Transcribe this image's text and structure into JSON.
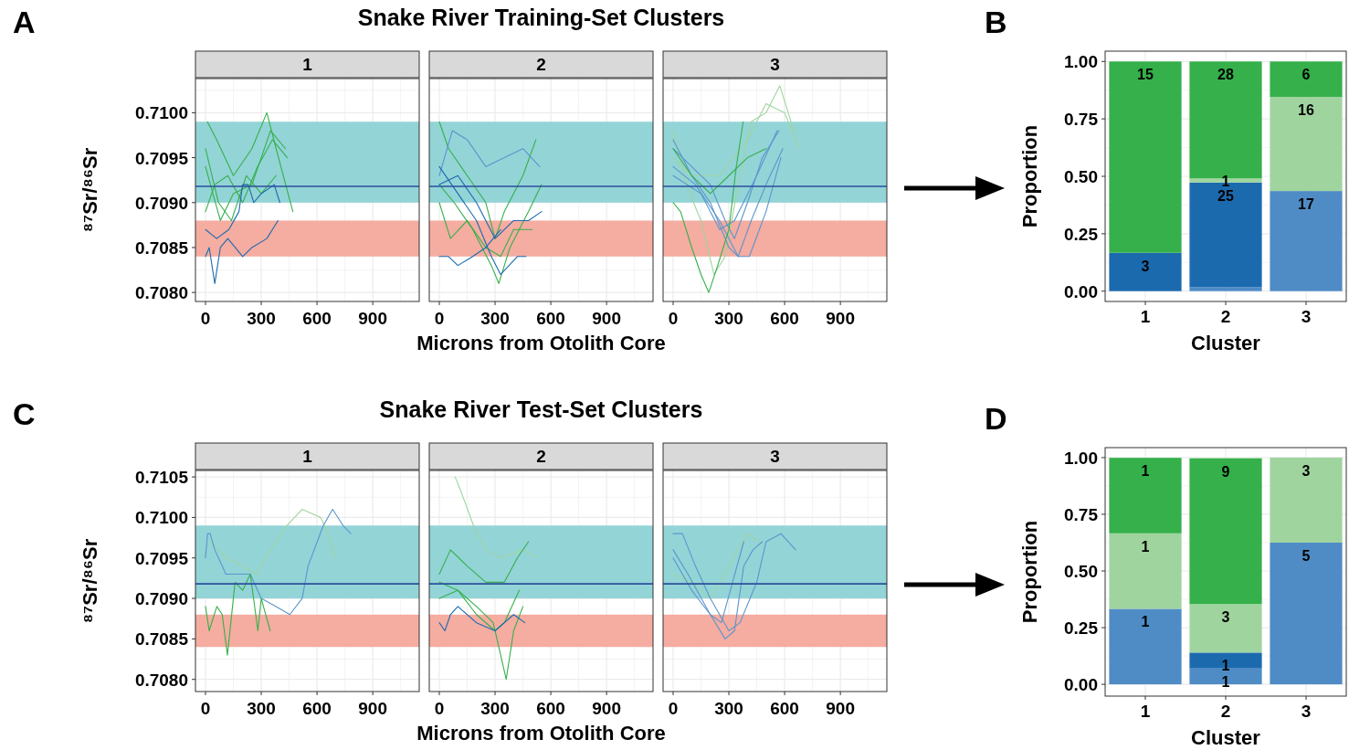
{
  "chart_data": [
    {
      "type": "line",
      "title": "1",
      "annotations": [
        "A"
      ],
      "ylabel": "⁸⁷Sr/⁸⁶Sr",
      "xlim": [
        -54,
        1150
      ],
      "ylim": [
        0.7079,
        0.71038
      ],
      "xticks": [
        0,
        300,
        600,
        900
      ],
      "yticks": [
        {
          "value": 0.708,
          "label": "0.7080"
        },
        {
          "value": 0.7085,
          "label": "0.7085"
        },
        {
          "value": 0.709,
          "label": "0.7090"
        },
        {
          "value": 0.7095,
          "label": "0.7095"
        },
        {
          "value": 0.71,
          "label": "0.7100"
        }
      ],
      "grid": true,
      "bands": [
        {
          "axis": "y",
          "from": 0.709,
          "to": 0.7099,
          "color": "#93d4d7"
        },
        {
          "axis": "y",
          "from": 0.7084,
          "to": 0.7088,
          "color": "#f5aca1"
        }
      ],
      "ref_lines": [
        {
          "axis": "y",
          "value": 0.70918,
          "color": "#2c4f9e"
        }
      ],
      "series": [
        {
          "color": "#35b04a",
          "x": [
            10,
            60,
            150,
            250,
            330,
            380,
            470
          ],
          "values": [
            0.7099,
            0.7097,
            0.7093,
            0.7096,
            0.71,
            0.7096,
            0.7089
          ]
        },
        {
          "color": "#35b04a",
          "x": [
            0,
            80,
            150,
            250,
            350,
            430
          ],
          "values": [
            0.7094,
            0.7088,
            0.7091,
            0.7092,
            0.7098,
            0.7096
          ]
        },
        {
          "color": "#35b04a",
          "x": [
            0,
            50,
            120,
            200,
            280,
            360,
            440
          ],
          "values": [
            0.7089,
            0.7092,
            0.7093,
            0.709,
            0.7094,
            0.7097,
            0.7095
          ]
        },
        {
          "color": "#35b04a",
          "x": [
            0,
            70,
            140,
            220,
            300,
            380
          ],
          "values": [
            0.7096,
            0.709,
            0.7088,
            0.7093,
            0.7091,
            0.7093
          ]
        },
        {
          "color": "#1c6aae",
          "x": [
            0,
            20,
            50,
            80,
            120,
            160,
            200,
            250,
            330,
            390
          ],
          "values": [
            0.7084,
            0.7085,
            0.7081,
            0.7085,
            0.7086,
            0.7085,
            0.7084,
            0.7085,
            0.7086,
            0.7088
          ]
        },
        {
          "color": "#1c6aae",
          "x": [
            0,
            60,
            126,
            180,
            200,
            230,
            260,
            300,
            370,
            400
          ],
          "values": [
            0.7087,
            0.7086,
            0.7087,
            0.7089,
            0.7092,
            0.7092,
            0.709,
            0.7091,
            0.7092,
            0.709
          ]
        }
      ]
    },
    {
      "type": "line",
      "title": "2",
      "annotations": [
        "Snake River Training-Set Clusters"
      ],
      "xlabel": "Microns from Otolith Core",
      "xlim": [
        -54,
        1150
      ],
      "ylim": [
        0.7079,
        0.71038
      ],
      "xticks": [
        0,
        300,
        600,
        900
      ],
      "yticks": [
        {
          "value": 0.708,
          "label": null
        },
        {
          "value": 0.7085,
          "label": null
        },
        {
          "value": 0.709,
          "label": null
        },
        {
          "value": 0.7095,
          "label": null
        },
        {
          "value": 0.71,
          "label": null
        }
      ],
      "grid": true,
      "tick_labels": "x",
      "bands": [
        {
          "axis": "y",
          "from": 0.709,
          "to": 0.7099,
          "color": "#93d4d7"
        },
        {
          "axis": "y",
          "from": 0.7084,
          "to": 0.7088,
          "color": "#f5aca1"
        }
      ],
      "ref_lines": [
        {
          "axis": "y",
          "value": 0.70918,
          "color": "#2c4f9e"
        }
      ],
      "series": [
        {
          "color": "#35b04a",
          "x": [
            0,
            50,
            150,
            250,
            300,
            350,
            450,
            520
          ],
          "values": [
            0.7099,
            0.7096,
            0.7093,
            0.709,
            0.7086,
            0.7089,
            0.7093,
            0.7097
          ]
        },
        {
          "color": "#35b04a",
          "x": [
            0,
            80,
            180,
            280,
            320,
            380,
            480,
            550
          ],
          "values": [
            0.7092,
            0.709,
            0.7087,
            0.7083,
            0.7081,
            0.7085,
            0.7089,
            0.7092
          ]
        },
        {
          "color": "#35b04a",
          "x": [
            0,
            60,
            150,
            250,
            330,
            400,
            500
          ],
          "values": [
            0.709,
            0.7086,
            0.7088,
            0.7085,
            0.7084,
            0.7087,
            0.7087
          ]
        },
        {
          "color": "#1c6aae",
          "x": [
            0,
            100,
            200,
            300,
            400,
            480,
            550
          ],
          "values": [
            0.7092,
            0.7093,
            0.709,
            0.7086,
            0.7088,
            0.7088,
            0.7089
          ]
        },
        {
          "color": "#5b95cc",
          "x": [
            0,
            70,
            150,
            250,
            350,
            450,
            540
          ],
          "values": [
            0.7093,
            0.7098,
            0.7097,
            0.7094,
            0.7095,
            0.7096,
            0.7094
          ]
        },
        {
          "color": "#1c6aae",
          "x": [
            0,
            100,
            200,
            280,
            330,
            420,
            467
          ],
          "values": [
            0.7094,
            0.7091,
            0.7088,
            0.7084,
            0.7082,
            0.7084,
            0.7084
          ]
        },
        {
          "color": "#1c6aae",
          "x": [
            0,
            50,
            100,
            180,
            250,
            330
          ],
          "values": [
            0.7084,
            0.7084,
            0.7083,
            0.7084,
            0.7085,
            0.7087
          ]
        }
      ]
    },
    {
      "type": "line",
      "title": "3",
      "xlim": [
        -54,
        1150
      ],
      "ylim": [
        0.7079,
        0.71038
      ],
      "xticks": [
        0,
        300,
        600,
        900
      ],
      "yticks": [
        {
          "value": 0.708,
          "label": null
        },
        {
          "value": 0.7085,
          "label": null
        },
        {
          "value": 0.709,
          "label": null
        },
        {
          "value": 0.7095,
          "label": null
        },
        {
          "value": 0.71,
          "label": null
        }
      ],
      "grid": true,
      "tick_labels": "x",
      "bands": [
        {
          "axis": "y",
          "from": 0.709,
          "to": 0.7099,
          "color": "#93d4d7"
        },
        {
          "axis": "y",
          "from": 0.7084,
          "to": 0.7088,
          "color": "#f5aca1"
        }
      ],
      "ref_lines": [
        {
          "axis": "y",
          "value": 0.70918,
          "color": "#2c4f9e"
        }
      ],
      "series": [
        {
          "color": "#9fd49f",
          "x": [
            0,
            70,
            150,
            220,
            280,
            350,
            420,
            500,
            574,
            650
          ],
          "values": [
            0.7098,
            0.7092,
            0.7088,
            0.7082,
            0.7084,
            0.7092,
            0.7099,
            0.71,
            0.7103,
            0.7098
          ]
        },
        {
          "color": "#9fd49f",
          "x": [
            0,
            100,
            250,
            400,
            500,
            600,
            680
          ],
          "values": [
            0.7095,
            0.7093,
            0.7093,
            0.7097,
            0.7101,
            0.71,
            0.7096
          ]
        },
        {
          "color": "#5b95cc",
          "x": [
            0,
            100,
            200,
            280,
            330,
            400,
            480,
            570
          ],
          "values": [
            0.7096,
            0.7094,
            0.7092,
            0.7088,
            0.7086,
            0.709,
            0.7095,
            0.7098
          ]
        },
        {
          "color": "#5b95cc",
          "x": [
            0,
            100,
            200,
            300,
            350,
            420,
            500,
            590
          ],
          "values": [
            0.7097,
            0.7093,
            0.709,
            0.7085,
            0.7084,
            0.7088,
            0.7092,
            0.7096
          ]
        },
        {
          "color": "#5b95cc",
          "x": [
            0,
            120,
            250,
            350,
            410,
            500,
            580
          ],
          "values": [
            0.7094,
            0.7092,
            0.7088,
            0.7084,
            0.7084,
            0.7089,
            0.7095
          ]
        },
        {
          "color": "#5b95cc",
          "x": [
            0,
            150,
            250,
            330,
            450,
            560
          ],
          "values": [
            0.7093,
            0.7091,
            0.7087,
            0.7088,
            0.7093,
            0.7098
          ]
        },
        {
          "color": "#35b04a",
          "x": [
            0,
            40,
            100,
            150,
            192,
            240,
            300,
            340,
            377
          ],
          "values": [
            0.709,
            0.7089,
            0.7085,
            0.7082,
            0.708,
            0.7083,
            0.7087,
            0.7094,
            0.7099
          ]
        },
        {
          "color": "#35b04a",
          "x": [
            0,
            100,
            200,
            300,
            400,
            500
          ],
          "values": [
            0.7096,
            0.7093,
            0.7091,
            0.7093,
            0.7095,
            0.7096
          ]
        }
      ]
    },
    {
      "type": "bar",
      "annotations": [
        "B",
        {
          "text": "3",
          "x": "1",
          "y": 0.167
        },
        {
          "text": "15",
          "x": "1",
          "y": 1.0
        },
        {
          "text": "25",
          "x": "2",
          "y": 0.473
        },
        {
          "text": "1",
          "x": "2",
          "y": 0.491
        },
        {
          "text": "28",
          "x": "2",
          "y": 1.0
        },
        {
          "text": "17",
          "x": "3",
          "y": 0.436
        },
        {
          "text": "16",
          "x": "3",
          "y": 0.846
        },
        {
          "text": "6",
          "x": "3",
          "y": 1.0
        }
      ],
      "xlabel": "Cluster",
      "ylabel": "Proportion",
      "categories": [
        "1",
        "2",
        "3"
      ],
      "stacked": true,
      "ylim": [
        -0.045,
        1.045
      ],
      "yticks": [
        {
          "value": 0,
          "label": "0.00"
        },
        {
          "value": 0.25,
          "label": "0.25"
        },
        {
          "value": 0.5,
          "label": "0.50"
        },
        {
          "value": 0.75,
          "label": "0.75"
        },
        {
          "value": 1,
          "label": "1.00"
        }
      ],
      "grid": true,
      "series": [
        {
          "color": "#4f8cc6",
          "values": [
            null,
            0.018,
            0.436
          ]
        },
        {
          "color": "#1c6aae",
          "values": [
            0.167,
            0.455,
            null
          ]
        },
        {
          "color": "#9fd49f",
          "values": [
            null,
            0.018,
            0.41
          ]
        },
        {
          "color": "#35b04a",
          "values": [
            0.833,
            0.509,
            0.154
          ]
        }
      ]
    },
    {
      "type": "line",
      "title": "1",
      "annotations": [
        "C"
      ],
      "ylabel": "⁸⁷Sr/⁸⁶Sr",
      "xlim": [
        -54,
        1150
      ],
      "ylim": [
        0.70785,
        0.71058
      ],
      "xticks": [
        0,
        300,
        600,
        900
      ],
      "yticks": [
        {
          "value": 0.708,
          "label": "0.7080"
        },
        {
          "value": 0.7085,
          "label": "0.7085"
        },
        {
          "value": 0.709,
          "label": "0.7090"
        },
        {
          "value": 0.7095,
          "label": "0.7095"
        },
        {
          "value": 0.71,
          "label": "0.7100"
        },
        {
          "value": 0.7105,
          "label": "0.7105"
        }
      ],
      "grid": true,
      "bands": [
        {
          "axis": "y",
          "from": 0.709,
          "to": 0.7099,
          "color": "#93d4d7"
        },
        {
          "axis": "y",
          "from": 0.7084,
          "to": 0.7088,
          "color": "#f5aca1"
        }
      ],
      "ref_lines": [
        {
          "axis": "y",
          "value": 0.70918,
          "color": "#2c4f9e"
        }
      ],
      "series": [
        {
          "color": "#9fd49f",
          "x": [
            28,
            110,
            200,
            274,
            350,
            438,
            520,
            620,
            660,
            700
          ],
          "values": [
            0.7097,
            0.7095,
            0.7094,
            0.7093,
            0.7096,
            0.7099,
            0.7101,
            0.71,
            0.7098,
            0.7095
          ]
        },
        {
          "color": "#5b95cc",
          "x": [
            0,
            11,
            25,
            50,
            110,
            180,
            241,
            300,
            380,
            454,
            520,
            552,
            634,
            684,
            740,
            782
          ],
          "values": [
            0.7095,
            0.7098,
            0.7098,
            0.7096,
            0.7093,
            0.7093,
            0.7093,
            0.709,
            0.7089,
            0.7088,
            0.709,
            0.7094,
            0.7099,
            0.7101,
            0.7099,
            0.7098
          ]
        },
        {
          "color": "#35b04a",
          "x": [
            0,
            20,
            61,
            90,
            118,
            159,
            200,
            241,
            282,
            300,
            348
          ],
          "values": [
            0.7089,
            0.7086,
            0.7089,
            0.7088,
            0.7083,
            0.7092,
            0.7091,
            0.7093,
            0.7086,
            0.709,
            0.7086
          ]
        }
      ]
    },
    {
      "type": "line",
      "title": "2",
      "annotations": [
        "Snake River Test-Set Clusters"
      ],
      "xlabel": "Microns from Otolith Core",
      "xlim": [
        -54,
        1150
      ],
      "ylim": [
        0.70785,
        0.71058
      ],
      "xticks": [
        0,
        300,
        600,
        900
      ],
      "yticks": [
        {
          "value": 0.708,
          "label": null
        },
        {
          "value": 0.7085,
          "label": null
        },
        {
          "value": 0.709,
          "label": null
        },
        {
          "value": 0.7095,
          "label": null
        },
        {
          "value": 0.71,
          "label": null
        },
        {
          "value": 0.7105,
          "label": null
        }
      ],
      "grid": true,
      "tick_labels": "x",
      "bands": [
        {
          "axis": "y",
          "from": 0.709,
          "to": 0.7099,
          "color": "#93d4d7"
        },
        {
          "axis": "y",
          "from": 0.7084,
          "to": 0.7088,
          "color": "#f5aca1"
        }
      ],
      "ref_lines": [
        {
          "axis": "y",
          "value": 0.70918,
          "color": "#2c4f9e"
        }
      ],
      "series": [
        {
          "color": "#9fd49f",
          "x": [
            85,
            120,
            184,
            250,
            330,
            450,
            530
          ],
          "values": [
            0.7105,
            0.7103,
            0.7099,
            0.7096,
            0.7095,
            0.7096,
            0.7095
          ]
        },
        {
          "color": "#35b04a",
          "x": [
            0,
            60,
            150,
            250,
            350,
            420,
            480
          ],
          "values": [
            0.7093,
            0.7096,
            0.7094,
            0.7092,
            0.7092,
            0.7095,
            0.7097
          ]
        },
        {
          "color": "#35b04a",
          "x": [
            0,
            100,
            200,
            290,
            340,
            360,
            400,
            450
          ],
          "values": [
            0.7092,
            0.7091,
            0.7089,
            0.7087,
            0.7082,
            0.708,
            0.7086,
            0.7089
          ]
        },
        {
          "color": "#35b04a",
          "x": [
            0,
            100,
            200,
            300,
            350,
            430
          ],
          "values": [
            0.709,
            0.7091,
            0.7088,
            0.7086,
            0.7087,
            0.7091
          ]
        },
        {
          "color": "#1c6aae",
          "x": [
            0,
            30,
            60,
            100,
            200,
            300,
            400,
            460
          ],
          "values": [
            0.7087,
            0.7086,
            0.7088,
            0.7089,
            0.7087,
            0.7086,
            0.7088,
            0.7087
          ]
        }
      ]
    },
    {
      "type": "line",
      "title": "3",
      "xlim": [
        -54,
        1150
      ],
      "ylim": [
        0.70785,
        0.71058
      ],
      "xticks": [
        0,
        300,
        600,
        900
      ],
      "yticks": [
        {
          "value": 0.708,
          "label": null
        },
        {
          "value": 0.7085,
          "label": null
        },
        {
          "value": 0.709,
          "label": null
        },
        {
          "value": 0.7095,
          "label": null
        },
        {
          "value": 0.71,
          "label": null
        },
        {
          "value": 0.7105,
          "label": null
        }
      ],
      "grid": true,
      "tick_labels": "x",
      "bands": [
        {
          "axis": "y",
          "from": 0.709,
          "to": 0.7099,
          "color": "#93d4d7"
        },
        {
          "axis": "y",
          "from": 0.7084,
          "to": 0.7088,
          "color": "#f5aca1"
        }
      ],
      "ref_lines": [
        {
          "axis": "y",
          "value": 0.70918,
          "color": "#2c4f9e"
        }
      ],
      "series": [
        {
          "color": "#9fd49f",
          "x": [
            0,
            100,
            200,
            300,
            400,
            460
          ],
          "values": [
            0.7093,
            0.7092,
            0.709,
            0.7094,
            0.7098,
            0.7097
          ]
        },
        {
          "color": "#5b95cc",
          "x": [
            0,
            50,
            120,
            200,
            300,
            360,
            450,
            500,
            580,
            659
          ],
          "values": [
            0.7098,
            0.7098,
            0.7094,
            0.709,
            0.7086,
            0.7087,
            0.7092,
            0.7097,
            0.7098,
            0.7096
          ]
        },
        {
          "color": "#5b95cc",
          "x": [
            0,
            80,
            200,
            280,
            330,
            380,
            430,
            480
          ],
          "values": [
            0.7096,
            0.7093,
            0.7088,
            0.7085,
            0.7086,
            0.7094,
            0.7096,
            0.7097
          ]
        },
        {
          "color": "#5b95cc",
          "x": [
            0,
            100,
            200,
            260,
            320,
            380
          ],
          "values": [
            0.7095,
            0.7091,
            0.7088,
            0.7087,
            0.7092,
            0.7097
          ]
        }
      ]
    },
    {
      "type": "bar",
      "annotations": [
        "D",
        {
          "text": "1",
          "x": "1",
          "y": 0.333
        },
        {
          "text": "1",
          "x": "1",
          "y": 0.666
        },
        {
          "text": "1",
          "x": "1",
          "y": 0.999
        },
        {
          "text": "1",
          "x": "2",
          "y": 0.07
        },
        {
          "text": "1",
          "x": "2",
          "y": 0.14
        },
        {
          "text": "3",
          "x": "2",
          "y": 0.354
        },
        {
          "text": "9",
          "x": "2",
          "y": 0.997
        },
        {
          "text": "5",
          "x": "3",
          "y": 0.625
        },
        {
          "text": "3",
          "x": "3",
          "y": 1.0
        }
      ],
      "xlabel": "Cluster",
      "ylabel": "Proportion",
      "categories": [
        "1",
        "2",
        "3"
      ],
      "stacked": true,
      "ylim": [
        -0.052,
        1.044
      ],
      "yticks": [
        {
          "value": 0,
          "label": "0.00"
        },
        {
          "value": 0.25,
          "label": "0.25"
        },
        {
          "value": 0.5,
          "label": "0.50"
        },
        {
          "value": 0.75,
          "label": "0.75"
        },
        {
          "value": 1,
          "label": "1.00"
        }
      ],
      "grid": true,
      "series": [
        {
          "color": "#4f8cc6",
          "values": [
            0.333,
            0.07,
            0.625
          ]
        },
        {
          "color": "#1c6aae",
          "values": [
            null,
            0.07,
            null
          ]
        },
        {
          "color": "#9fd49f",
          "values": [
            0.333,
            0.214,
            0.375
          ]
        },
        {
          "color": "#35b04a",
          "values": [
            0.333,
            0.643,
            null
          ]
        }
      ]
    }
  ]
}
